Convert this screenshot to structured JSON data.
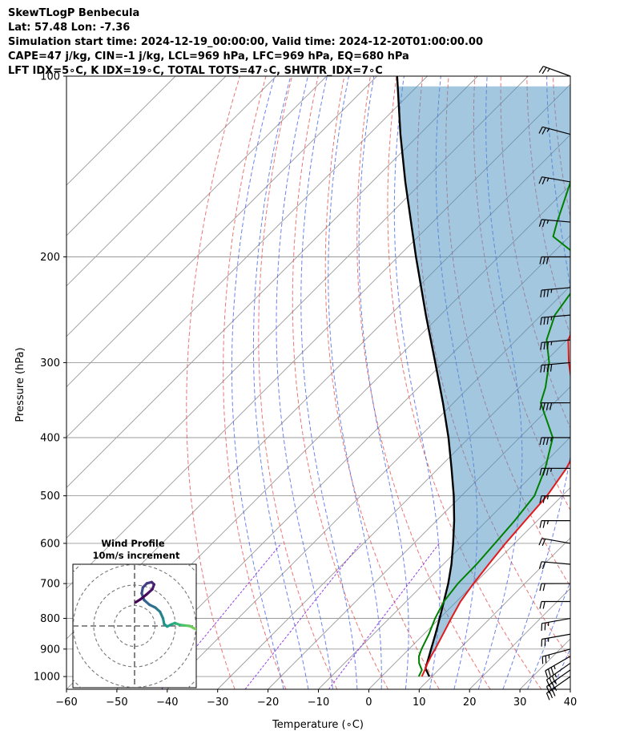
{
  "header": {
    "title": "SkewTLogP Benbecula",
    "location": "Lat: 57.48   Lon: -7.36",
    "times": "Simulation start time: 2024-12-19_00:00:00, Valid time: 2024-12-20T01:00:00.00",
    "indices1": "CAPE=47 j/kg, CIN=-1 j/kg, LCL=969 hPa, LFC=969 hPa, EQ=680 hPa",
    "indices2": "LFT IDX=5∘C, K IDX=19∘C, TOTAL TOTS=47∘C, SHWTR_IDX=7∘C"
  },
  "colors": {
    "temperature": "#e31a1c",
    "dewpoint": "#008000",
    "parcel": "#000000",
    "cape_fill": "#4a90c2",
    "dry_adiabat": "#e34a4a",
    "moist_adiabat": "#3c5ae6",
    "mixing_ratio": "#8a2be2",
    "isotherm": "#9a9a9a"
  },
  "chart_data": {
    "type": "line",
    "xlabel": "Temperature (∘C)",
    "ylabel": "Pressure (hPa)",
    "x_ticks": [
      -60,
      -50,
      -40,
      -30,
      -20,
      -10,
      0,
      10,
      20,
      30,
      40
    ],
    "x_tick_labels": [
      "−60",
      "−50",
      "−40",
      "−30",
      "−20",
      "−10",
      "0",
      "10",
      "20",
      "30",
      "40"
    ],
    "y_ticks": [
      1000,
      900,
      800,
      700,
      600,
      500,
      400,
      300,
      200,
      100
    ],
    "xlim": [
      -60,
      40
    ],
    "ylim": [
      1050,
      100
    ],
    "y_scale": "log",
    "grid": true,
    "series": [
      {
        "key": "temperature",
        "pressure": [
          1000,
          975,
          950,
          925,
          900,
          850,
          800,
          750,
          700,
          650,
          600,
          550,
          500,
          450,
          400,
          350,
          300,
          275,
          250,
          225,
          200,
          175,
          150,
          125,
          100
        ],
        "temperature": [
          8,
          7.3,
          6.5,
          5.8,
          5.2,
          3.8,
          2.3,
          0.8,
          -0.2,
          -1,
          -1.8,
          -2.4,
          -3,
          -4.6,
          -7.5,
          -16,
          -25.1,
          -29.7,
          -32.5,
          -34,
          -34.5,
          -34.6,
          -37.8,
          -42.5,
          -46.3
        ]
      },
      {
        "key": "dewpoint",
        "pressure": [
          1000,
          975,
          950,
          925,
          900,
          850,
          800,
          750,
          700,
          650,
          600,
          550,
          500,
          450,
          400,
          350,
          330,
          300,
          275,
          250,
          225,
          205,
          200,
          185,
          175,
          150,
          125,
          100
        ],
        "temperature": [
          7.4,
          6.7,
          4.8,
          3.4,
          2.5,
          1,
          -0.9,
          -2.5,
          -3.3,
          -3.4,
          -3.9,
          -4.5,
          -5.5,
          -8.8,
          -13.4,
          -22.7,
          -24.8,
          -29,
          -34,
          -37.3,
          -38.8,
          -40.5,
          -44.1,
          -53.2,
          -55.3,
          -60.6,
          -67,
          -74
        ]
      },
      {
        "key": "parcel",
        "pressure": [
          1000,
          969,
          950,
          900,
          850,
          800,
          750,
          700,
          650,
          600,
          550,
          500,
          450,
          400,
          350,
          300,
          250,
          200,
          150,
          125,
          100
        ],
        "temperature": [
          9.5,
          7.1,
          6.4,
          4.4,
          2.3,
          0,
          -2.5,
          -5.2,
          -8.4,
          -12.2,
          -16.5,
          -21.5,
          -27.4,
          -34.1,
          -42.1,
          -51.6,
          -62.9,
          -76.4,
          -93.4,
          -103.8,
          -116
        ]
      }
    ],
    "cape_region": {
      "from_pressure": 969,
      "to_pressure": 100
    },
    "wind_barbs": [
      {
        "p": 1000,
        "speed": 35,
        "dir": 235
      },
      {
        "p": 975,
        "speed": 35,
        "dir": 235
      },
      {
        "p": 950,
        "speed": 35,
        "dir": 235
      },
      {
        "p": 925,
        "speed": 35,
        "dir": 240
      },
      {
        "p": 900,
        "speed": 25,
        "dir": 255
      },
      {
        "p": 850,
        "speed": 25,
        "dir": 260
      },
      {
        "p": 800,
        "speed": 25,
        "dir": 260
      },
      {
        "p": 750,
        "speed": 20,
        "dir": 270
      },
      {
        "p": 700,
        "speed": 20,
        "dir": 270
      },
      {
        "p": 650,
        "speed": 20,
        "dir": 275
      },
      {
        "p": 600,
        "speed": 20,
        "dir": 280
      },
      {
        "p": 550,
        "speed": 25,
        "dir": 270
      },
      {
        "p": 500,
        "speed": 25,
        "dir": 270
      },
      {
        "p": 450,
        "speed": 35,
        "dir": 270
      },
      {
        "p": 400,
        "speed": 35,
        "dir": 270
      },
      {
        "p": 350,
        "speed": 40,
        "dir": 270
      },
      {
        "p": 300,
        "speed": 40,
        "dir": 265
      },
      {
        "p": 275,
        "speed": 35,
        "dir": 265
      },
      {
        "p": 250,
        "speed": 35,
        "dir": 265
      },
      {
        "p": 225,
        "speed": 35,
        "dir": 265
      },
      {
        "p": 200,
        "speed": 30,
        "dir": 270
      },
      {
        "p": 175,
        "speed": 25,
        "dir": 275
      },
      {
        "p": 150,
        "speed": 25,
        "dir": 280
      },
      {
        "p": 125,
        "speed": 25,
        "dir": 285
      },
      {
        "p": 100,
        "speed": 25,
        "dir": 290
      }
    ],
    "hodograph": {
      "title": "Wind Profile",
      "subtitle": "10m/s increment",
      "rings_ms": [
        10,
        20,
        30,
        40
      ],
      "u": [
        14.2,
        13.5,
        12.6,
        11.5,
        10.4,
        9.3,
        8.4,
        7.6,
        6.8,
        6.1,
        5.5,
        5.0,
        4.8,
        4.3,
        3.5,
        2.5,
        1.6,
        1.2,
        1.4,
        2.1,
        2.9,
        3.3,
        3.0,
        2.0,
        1.0,
        0.2
      ],
      "v": [
        -2.0,
        -1.6,
        -1.3,
        -1.0,
        -0.6,
        0.0,
        0.1,
        0.2,
        0.5,
        0.2,
        -0.1,
        0.3,
        1.3,
        2.4,
        3.1,
        3.6,
        4.4,
        5.5,
        6.5,
        7.2,
        7.4,
        7.0,
        6.2,
        5.3,
        4.5,
        4.0
      ],
      "colors": [
        "#d8e219",
        "#c0df25",
        "#a5db36",
        "#8bd646",
        "#73d056",
        "#5ec962",
        "#4ac16d",
        "#37b878",
        "#28ae80",
        "#1fa088",
        "#1e9b8a",
        "#21918c",
        "#25858e",
        "#297b8e",
        "#2d708e",
        "#32658e",
        "#375a8c",
        "#3c4f8a",
        "#414487",
        "#453882",
        "#472c7a",
        "#481f70",
        "#481467",
        "#46085c",
        "#450457",
        "#440154"
      ]
    }
  }
}
